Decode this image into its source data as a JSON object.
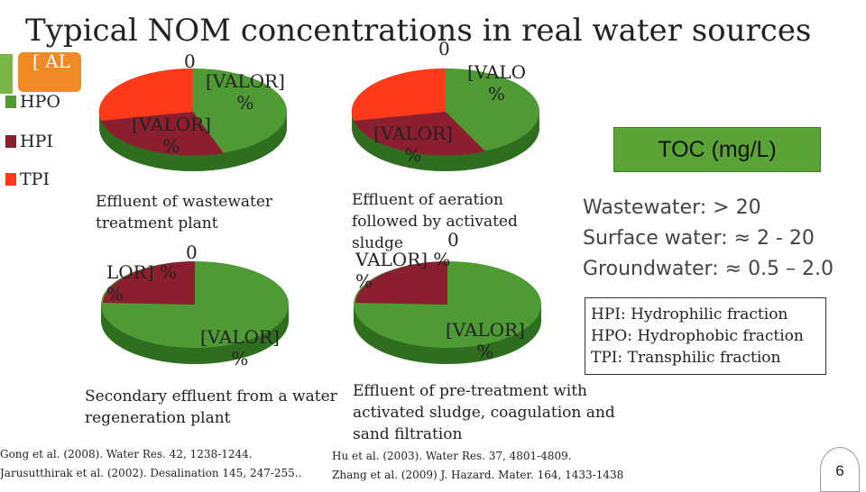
{
  "title": "Typical NOM concentrations in real water sources",
  "legend": {
    "partial_label": "[ AL",
    "items": [
      {
        "label": "HPO",
        "color": "#4e9a34"
      },
      {
        "label": "HPI",
        "color": "#8b1e2f"
      },
      {
        "label": "TPI",
        "color": "#ff3a1a"
      }
    ]
  },
  "pies": {
    "p1": {
      "labels": {
        "top": "0",
        "right": "[VALOR]\n%",
        "left": "[VALOR]\n%"
      },
      "caption": "Effluent of wastewater\ntreatment plant"
    },
    "p2": {
      "labels": {
        "top": "0",
        "right": "[VALO\n%",
        "left": "[VALOR]\n%"
      },
      "caption": "Effluent of aeration\nfollowed by activated\nsludge"
    },
    "p3": {
      "labels": {
        "top": "0",
        "left": "LOR] %\n%",
        "bottom": "[VALOR]\n%"
      },
      "caption": "Secondary effluent from a water\nregeneration plant"
    },
    "p4": {
      "labels": {
        "top": "0",
        "left": "VALOR] %\n%",
        "bottom": "[VALOR]\n%"
      },
      "caption": "Effluent of pre-treatment with\nactivated sludge, coagulation and\nsand filtration"
    }
  },
  "toc": {
    "header": "TOC (mg/L)",
    "rows": [
      {
        "source": "Wastewater:",
        "value": "> 20"
      },
      {
        "source": "Surface water:",
        "value": "≈ 2 - 20"
      },
      {
        "source": "Groundwater:",
        "value": "≈ 0.5 – 2.0"
      }
    ]
  },
  "definitions": [
    "HPI:  Hydrophilic fraction",
    "HPO: Hydrophobic fraction",
    "TPI: Transphilic fraction"
  ],
  "references_left": [
    "Gong et al. (2008). Water Res. 42, 1238-1244.",
    "Jarusutthirak et al. (2002). Desalination 145, 247-255.."
  ],
  "references_right": [
    "Hu et al. (2003). Water Res. 37, 4801-4809.",
    "Zhang et al. (2009) J. Hazard. Mater. 164, 1433-1438"
  ],
  "page_number": "6"
}
